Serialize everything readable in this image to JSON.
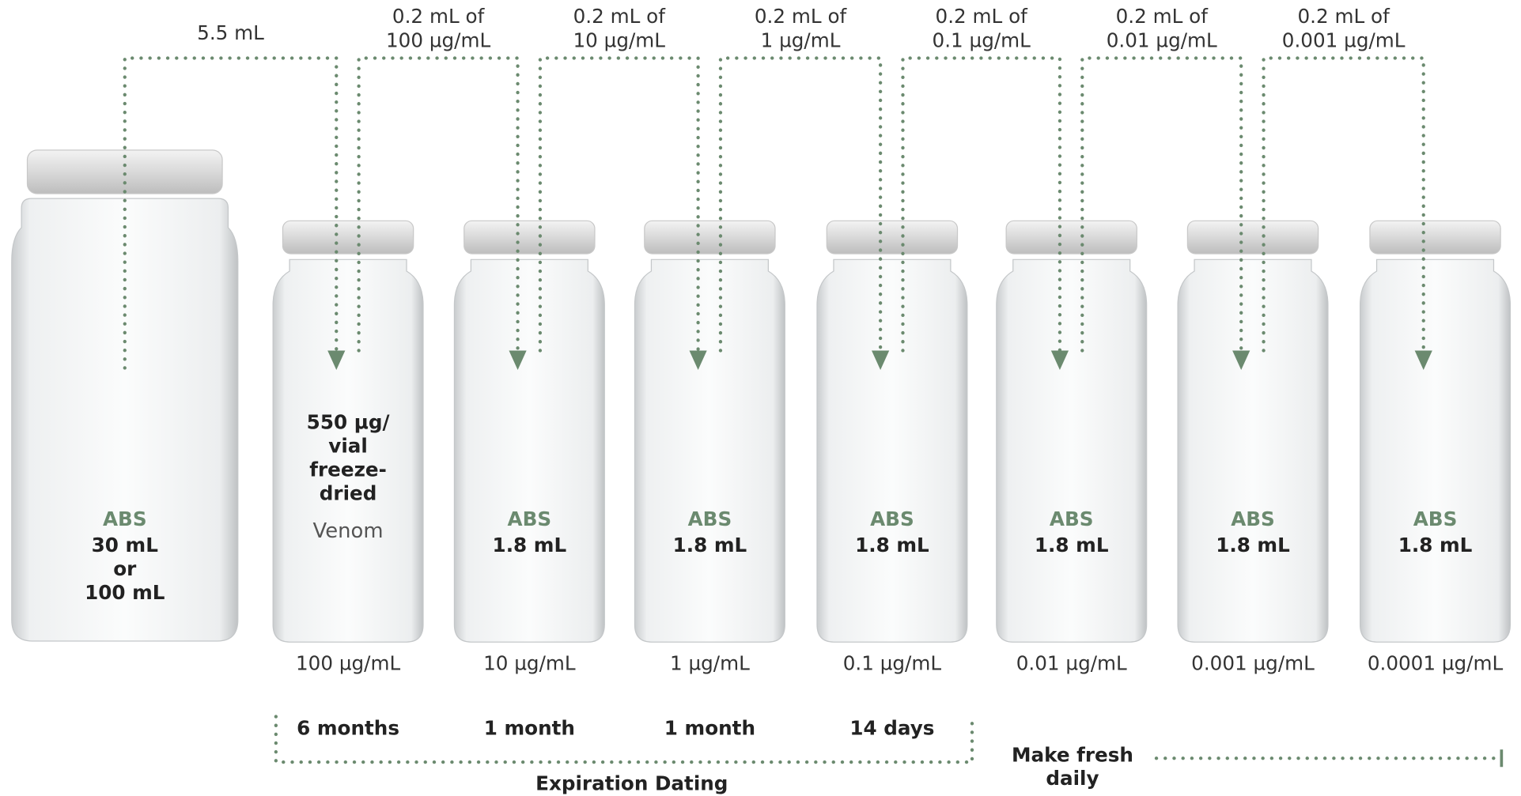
{
  "transfers": [
    [
      "5.5 mL"
    ],
    [
      "0.2 mL of",
      "100 µg/mL"
    ],
    [
      "0.2 mL of",
      "10 µg/mL"
    ],
    [
      "0.2 mL of",
      "1 µg/mL"
    ],
    [
      "0.2 mL of",
      "0.1 µg/mL"
    ],
    [
      "0.2 mL of",
      "0.01 µg/mL"
    ],
    [
      "0.2 mL of",
      "0.001 µg/mL"
    ]
  ],
  "vials": [
    {
      "diluent": "ABS",
      "contents": [
        "30 mL",
        "or",
        "100 mL"
      ]
    },
    {
      "contents": [
        "550 µg/",
        "vial",
        "freeze-",
        "dried"
      ],
      "label": "Venom",
      "concentration": "100 µg/mL"
    },
    {
      "diluent": "ABS",
      "contents": [
        "1.8 mL"
      ],
      "concentration": "10 µg/mL"
    },
    {
      "diluent": "ABS",
      "contents": [
        "1.8 mL"
      ],
      "concentration": "1 µg/mL"
    },
    {
      "diluent": "ABS",
      "contents": [
        "1.8 mL"
      ],
      "concentration": "0.1 µg/mL"
    },
    {
      "diluent": "ABS",
      "contents": [
        "1.8 mL"
      ],
      "concentration": "0.01 µg/mL"
    },
    {
      "diluent": "ABS",
      "contents": [
        "1.8 mL"
      ],
      "concentration": "0.001 µg/mL"
    },
    {
      "diluent": "ABS",
      "contents": [
        "1.8 mL"
      ],
      "concentration": "0.0001 µg/mL"
    }
  ],
  "expiration": {
    "items": [
      "6 months",
      "1 month",
      "1 month",
      "14 days"
    ],
    "label": "Expiration Dating"
  },
  "fresh": {
    "label": [
      "Make fresh",
      "daily"
    ]
  }
}
